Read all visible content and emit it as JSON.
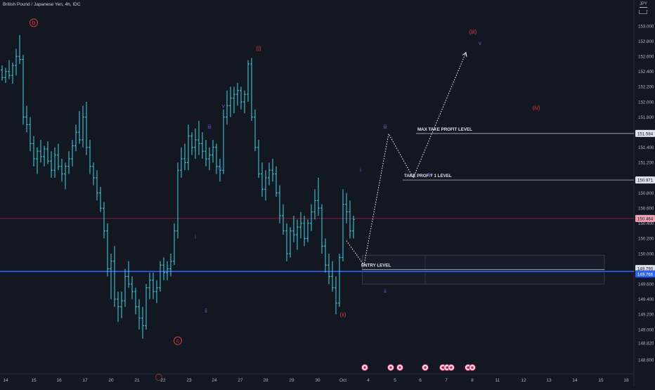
{
  "header": {
    "title": "British Pound / Japanese Yen, 4h, IDC",
    "currency": "JPY"
  },
  "colors": {
    "background": "#131722",
    "bar": "#3dd8e0",
    "text": "#d1d4dc",
    "wave_red": "#e0393e",
    "wave_purple": "#6e54c9",
    "blue_line": "#2962ff",
    "pink_line": "#e91e63",
    "level_line": "#b2b5be",
    "pink_label": "#f0a2b3",
    "blue_label": "#2962ff",
    "gray_label": "#e0e3eb"
  },
  "chart_data": {
    "type": "ohlc",
    "title": "British Pound / Japanese Yen, 4h, IDC",
    "y_axis": {
      "ticks": [
        "153.000",
        "152.800",
        "152.600",
        "152.400",
        "152.200",
        "152.000",
        "151.800",
        "151.584",
        "151.400",
        "151.200",
        "150.971",
        "150.800",
        "150.600",
        "150.464",
        "150.400",
        "150.200",
        "150.000",
        "149.790",
        "149.766",
        "149.600",
        "149.400",
        "149.200",
        "149.000",
        "148.820",
        "148.600"
      ],
      "ylim": [
        148.55,
        153.12
      ]
    },
    "x_axis": {
      "ticks": [
        "14",
        "15",
        "16",
        "17",
        "20",
        "21",
        "22",
        "23",
        "24",
        "27",
        "28",
        "29",
        "30",
        "Oct",
        "4",
        "5",
        "6",
        "7",
        "8",
        "11",
        "12",
        "13",
        "14",
        "15",
        "18"
      ]
    },
    "ohlc_bars": [
      [
        152.42,
        152.48,
        152.28,
        152.32
      ],
      [
        152.32,
        152.45,
        152.25,
        152.4
      ],
      [
        152.4,
        152.55,
        152.3,
        152.35
      ],
      [
        152.35,
        152.52,
        152.24,
        152.48
      ],
      [
        152.48,
        152.7,
        152.35,
        152.6
      ],
      [
        152.6,
        152.88,
        152.5,
        152.56
      ],
      [
        152.56,
        152.62,
        151.7,
        151.8
      ],
      [
        151.8,
        151.95,
        151.6,
        151.7
      ],
      [
        151.7,
        151.8,
        151.35,
        151.45
      ],
      [
        151.45,
        151.55,
        151.15,
        151.25
      ],
      [
        151.25,
        151.4,
        151.05,
        151.35
      ],
      [
        151.35,
        151.5,
        151.2,
        151.28
      ],
      [
        151.28,
        151.42,
        151.15,
        151.38
      ],
      [
        151.38,
        151.48,
        151.18,
        151.22
      ],
      [
        151.22,
        151.35,
        151.0,
        151.1
      ],
      [
        151.1,
        151.4,
        151.0,
        151.3
      ],
      [
        151.3,
        151.45,
        151.1,
        151.15
      ],
      [
        151.15,
        151.25,
        150.95,
        151.05
      ],
      [
        151.05,
        151.2,
        150.85,
        151.15
      ],
      [
        151.15,
        151.35,
        151.05,
        151.25
      ],
      [
        151.25,
        151.5,
        151.15,
        151.42
      ],
      [
        151.42,
        151.7,
        151.35,
        151.6
      ],
      [
        151.6,
        151.88,
        151.45,
        151.5
      ],
      [
        151.5,
        151.95,
        151.4,
        151.8
      ],
      [
        151.8,
        152.0,
        151.3,
        151.4
      ],
      [
        151.4,
        151.5,
        151.05,
        151.15
      ],
      [
        151.15,
        151.2,
        150.9,
        151.0
      ],
      [
        151.0,
        151.1,
        150.7,
        150.8
      ],
      [
        150.8,
        150.88,
        150.55,
        150.6
      ],
      [
        150.6,
        150.68,
        150.2,
        150.3
      ],
      [
        150.3,
        150.4,
        149.7,
        149.8
      ],
      [
        149.8,
        150.0,
        149.4,
        149.9
      ],
      [
        149.9,
        150.1,
        149.3,
        149.4
      ],
      [
        149.4,
        149.5,
        149.1,
        149.3
      ],
      [
        149.3,
        149.5,
        149.15,
        149.38
      ],
      [
        149.38,
        149.8,
        149.3,
        149.7
      ],
      [
        149.7,
        149.9,
        149.55,
        149.6
      ],
      [
        149.6,
        149.7,
        149.4,
        149.5
      ],
      [
        149.5,
        149.55,
        149.2,
        149.3
      ],
      [
        149.3,
        149.4,
        149.0,
        149.15
      ],
      [
        149.15,
        149.3,
        148.88,
        149.05
      ],
      [
        149.05,
        149.6,
        149.0,
        149.55
      ],
      [
        149.55,
        149.75,
        149.4,
        149.65
      ],
      [
        149.65,
        149.75,
        149.4,
        149.5
      ],
      [
        149.5,
        149.65,
        149.35,
        149.55
      ],
      [
        149.55,
        149.9,
        149.5,
        149.85
      ],
      [
        149.85,
        149.95,
        149.65,
        149.75
      ],
      [
        149.75,
        149.9,
        149.65,
        149.8
      ],
      [
        149.8,
        150.0,
        149.7,
        149.9
      ],
      [
        149.9,
        150.4,
        149.85,
        150.3
      ],
      [
        150.3,
        151.2,
        150.2,
        151.1
      ],
      [
        151.1,
        151.4,
        151.0,
        151.25
      ],
      [
        151.25,
        151.45,
        151.1,
        151.2
      ],
      [
        151.2,
        151.7,
        151.1,
        151.55
      ],
      [
        151.55,
        151.6,
        151.3,
        151.4
      ],
      [
        151.4,
        151.65,
        151.25,
        151.5
      ],
      [
        151.5,
        151.75,
        151.3,
        151.45
      ],
      [
        151.45,
        151.6,
        151.25,
        151.35
      ],
      [
        151.35,
        151.5,
        151.15,
        151.25
      ],
      [
        151.25,
        151.4,
        151.1,
        151.3
      ],
      [
        151.3,
        151.5,
        151.2,
        151.4
      ],
      [
        151.4,
        151.45,
        151.05,
        151.15
      ],
      [
        151.15,
        151.25,
        150.95,
        151.1
      ],
      [
        151.1,
        151.9,
        151.05,
        151.8
      ],
      [
        151.8,
        152.15,
        151.7,
        151.95
      ],
      [
        151.95,
        152.2,
        151.8,
        152.05
      ],
      [
        152.05,
        152.2,
        151.85,
        152.1
      ],
      [
        152.1,
        152.25,
        151.95,
        152.15
      ],
      [
        152.15,
        152.2,
        151.9,
        152.0
      ],
      [
        152.0,
        152.15,
        151.85,
        152.1
      ],
      [
        152.1,
        152.55,
        152.0,
        152.5
      ],
      [
        152.5,
        152.58,
        151.75,
        151.8
      ],
      [
        151.8,
        151.9,
        151.35,
        151.4
      ],
      [
        151.4,
        151.5,
        151.0,
        151.05
      ],
      [
        151.05,
        151.2,
        150.75,
        150.85
      ],
      [
        150.85,
        151.1,
        150.7,
        151.0
      ],
      [
        151.0,
        151.2,
        150.9,
        151.1
      ],
      [
        151.1,
        151.25,
        150.95,
        151.05
      ],
      [
        151.05,
        151.15,
        150.75,
        150.8
      ],
      [
        150.8,
        150.9,
        150.4,
        150.5
      ],
      [
        150.5,
        150.65,
        150.25,
        150.3
      ],
      [
        150.3,
        150.4,
        149.9,
        150.0
      ],
      [
        150.0,
        150.35,
        149.95,
        150.3
      ],
      [
        150.3,
        150.5,
        150.15,
        150.25
      ],
      [
        150.25,
        150.45,
        150.05,
        150.35
      ],
      [
        150.35,
        150.55,
        150.2,
        150.4
      ],
      [
        150.4,
        150.5,
        150.1,
        150.2
      ],
      [
        150.2,
        150.45,
        150.15,
        150.4
      ],
      [
        150.4,
        150.65,
        150.3,
        150.55
      ],
      [
        150.55,
        150.85,
        150.45,
        150.7
      ],
      [
        150.7,
        151.0,
        150.5,
        150.6
      ],
      [
        150.6,
        150.65,
        150.0,
        150.1
      ],
      [
        150.1,
        150.2,
        149.75,
        149.85
      ],
      [
        149.85,
        150.0,
        149.6,
        149.7
      ],
      [
        149.7,
        149.9,
        149.5,
        149.55
      ],
      [
        149.55,
        149.7,
        149.2,
        149.35
      ],
      [
        149.35,
        150.0,
        149.3,
        149.95
      ],
      [
        149.95,
        150.85,
        149.9,
        150.65
      ],
      [
        150.65,
        150.8,
        150.4,
        150.55
      ],
      [
        150.55,
        150.7,
        150.2,
        150.3
      ],
      [
        150.3,
        150.5,
        150.2,
        150.45
      ]
    ],
    "levels": [
      {
        "name": "MAX TAKE PROFIT LEVEL",
        "price": 151.584
      },
      {
        "name": "TAKE PROFIT 1 LEVEL",
        "price": 150.971
      },
      {
        "name": "ENTRY LEVEL",
        "price": 149.79
      },
      {
        "name": "horizontal-line",
        "price": 149.766
      },
      {
        "name": "horizontal-line",
        "price": 150.464
      }
    ],
    "projection": [
      {
        "bar": 98,
        "price": 150.17
      },
      {
        "bar": 103,
        "price": 149.85
      },
      {
        "bar": 110,
        "price": 151.58
      },
      {
        "bar": 117,
        "price": 151.0
      },
      {
        "bar": 132,
        "price": 152.65
      }
    ],
    "wave_labels": [
      {
        "text": "b",
        "bar": 9,
        "price": 153.02,
        "color": "red",
        "circled": true
      },
      {
        "text": "c",
        "bar": 50,
        "price": 148.83,
        "color": "red",
        "circled": true
      },
      {
        "text": "(i)",
        "bar": 73,
        "price": 152.68,
        "color": "red"
      },
      {
        "text": "(ii)",
        "bar": 97,
        "price": 149.17,
        "color": "red"
      },
      {
        "text": "(iii)",
        "bar": 134,
        "price": 152.9,
        "color": "red"
      },
      {
        "text": "(iv)",
        "bar": 152,
        "price": 151.9,
        "color": "red"
      },
      {
        "text": "i",
        "bar": 55,
        "price": 150.2,
        "color": "purple"
      },
      {
        "text": "ii",
        "bar": 58,
        "price": 149.22,
        "color": "purple"
      },
      {
        "text": "iii",
        "bar": 59,
        "price": 151.65,
        "color": "purple"
      },
      {
        "text": "iv",
        "bar": 62,
        "price": 151.1,
        "color": "purple"
      },
      {
        "text": "v",
        "bar": 63,
        "price": 151.92,
        "color": "purple"
      },
      {
        "text": "i",
        "bar": 102,
        "price": 151.08,
        "color": "purple"
      },
      {
        "text": "ii",
        "bar": 109,
        "price": 149.48,
        "color": "purple"
      },
      {
        "text": "iii",
        "bar": 109,
        "price": 151.65,
        "color": "purple"
      },
      {
        "text": "iv",
        "bar": 122,
        "price": 151.01,
        "color": "purple"
      },
      {
        "text": "v",
        "bar": 136,
        "price": 152.75,
        "color": "purple"
      }
    ],
    "grid": false
  }
}
